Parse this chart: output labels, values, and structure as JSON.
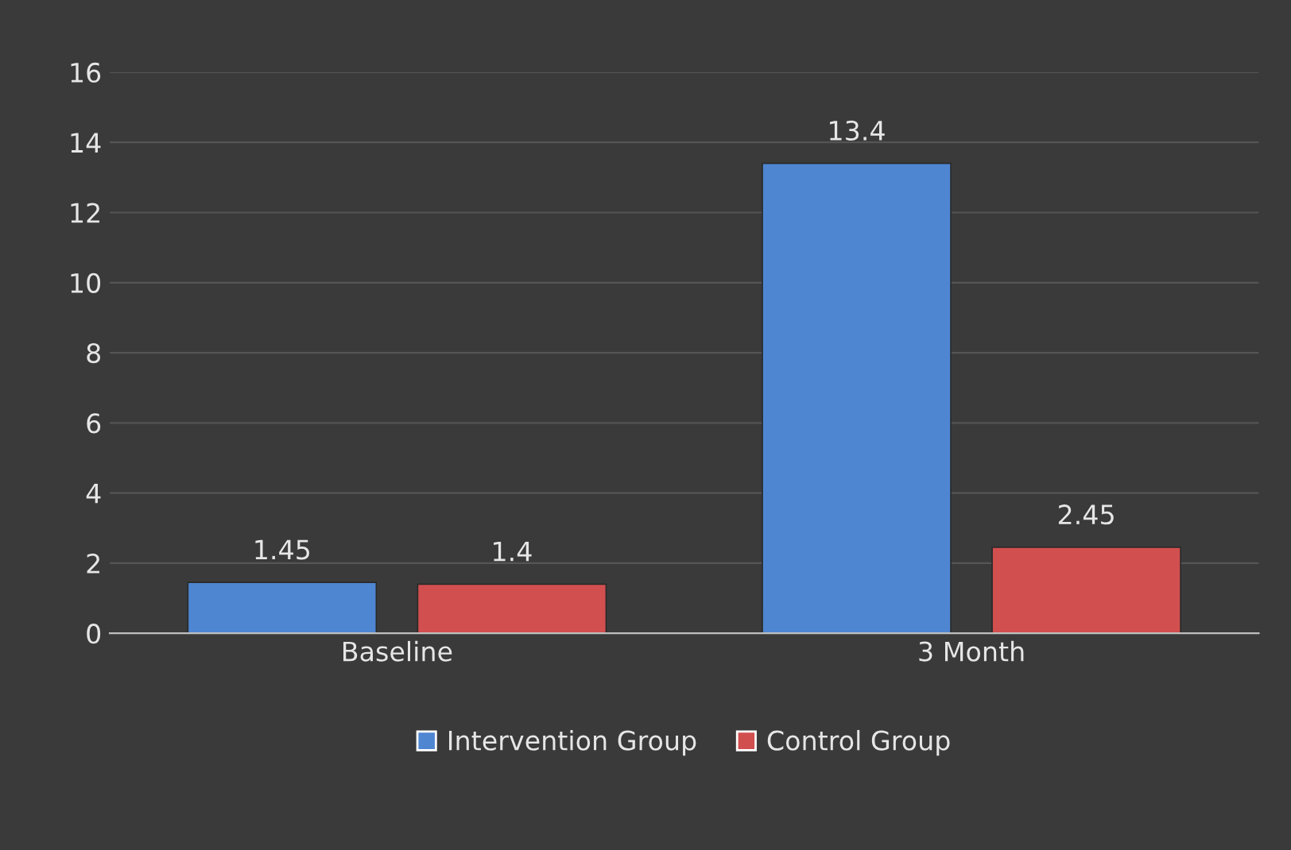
{
  "chart_data": {
    "type": "bar",
    "categories": [
      "Baseline",
      "3 Month"
    ],
    "series": [
      {
        "name": "Intervention Group",
        "color": "#4f86d2",
        "values": [
          1.45,
          13.4
        ]
      },
      {
        "name": "Control Group",
        "color": "#d24f4f",
        "values": [
          1.4,
          2.45
        ]
      }
    ],
    "ylim": [
      0,
      16
    ],
    "yticks": [
      0,
      2,
      4,
      6,
      8,
      10,
      12,
      14,
      16
    ],
    "grid": "y",
    "legend": "bottom",
    "data_labels": true
  }
}
